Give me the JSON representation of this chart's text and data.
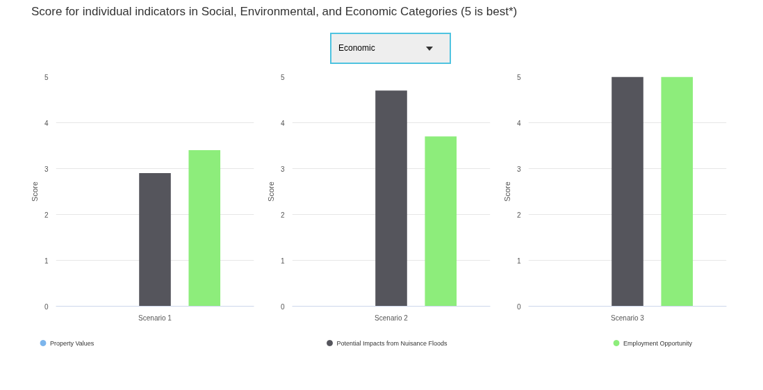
{
  "chart_data": [
    {
      "type": "bar",
      "title": "Score for individual indicators in Social, Environmental, and Economic Categories (5 is best*)",
      "annotations": [
        "Economic"
      ],
      "categories": [
        "Scenario 1"
      ],
      "ylabel": "Score",
      "ylim": [
        0,
        5
      ],
      "yticks": [
        0,
        1,
        2,
        3,
        4,
        5
      ],
      "grid": "y",
      "legend": "bottom",
      "series": [
        {
          "name": "Property Values",
          "color": "#7cb5ec",
          "values": [
            null
          ]
        },
        {
          "name": "Potential Impacts from Nuisance Floods",
          "color": "#55555c",
          "values": [
            2.9
          ]
        },
        {
          "name": "Employment Opportunity",
          "color": "#8ded7b",
          "values": [
            3.4
          ]
        }
      ]
    },
    {
      "type": "bar",
      "categories": [
        "Scenario 2"
      ],
      "ylabel": "Score",
      "ylim": [
        0,
        5
      ],
      "yticks": [
        0,
        1,
        2,
        3,
        4,
        5
      ],
      "grid": "y",
      "series": [
        {
          "color": "#7cb5ec",
          "values": [
            null
          ]
        },
        {
          "color": "#55555c",
          "values": [
            4.7
          ]
        },
        {
          "color": "#8ded7b",
          "values": [
            3.7
          ]
        }
      ]
    },
    {
      "type": "bar",
      "categories": [
        "Scenario 3"
      ],
      "ylabel": "Score",
      "ylim": [
        0,
        5
      ],
      "yticks": [
        0,
        1,
        2,
        3,
        4,
        5
      ],
      "grid": "y",
      "series": [
        {
          "color": "#7cb5ec",
          "values": [
            null
          ]
        },
        {
          "color": "#55555c",
          "values": [
            5
          ]
        },
        {
          "color": "#8ded7b",
          "values": [
            5
          ]
        }
      ]
    }
  ]
}
